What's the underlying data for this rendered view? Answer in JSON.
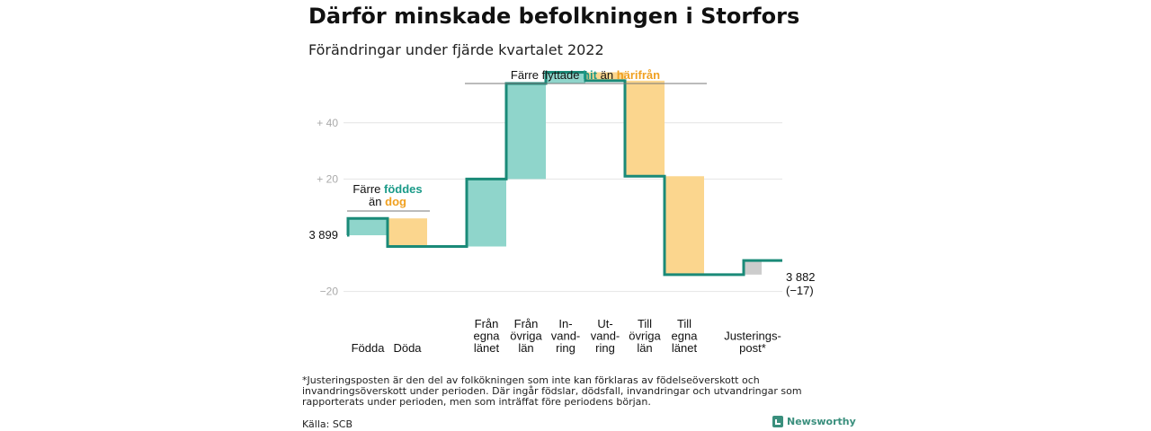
{
  "title": "Därför minskade befolkningen i Storfors",
  "subtitle": "Förändringar under fjärde kvartalet 2022",
  "footnote": "*Justeringsposten är den del av folkökningen som inte kan förklaras av födelseöverskott och invandringsöverskott under perioden. Där ingår födslar, dödsfall, invandringar och utvandringar som rapporterats under perioden, men som inträffat före periodens början.",
  "source": "Källa: SCB",
  "brand": "Newsworthy",
  "colors": {
    "line": "#1a8a78",
    "increase": "#8fd5cb",
    "decrease": "#fbd68e",
    "adjustment": "#cccccc",
    "grid": "#e4e4e4",
    "accent_text": "#1a9a88",
    "orange_text": "#f0a020"
  },
  "chart_data": {
    "type": "waterfall",
    "start_value": 3899,
    "start_label": "3 899",
    "end_label": "3 882",
    "end_change_label": "(−17)",
    "categories": [
      "Födda",
      "Döda",
      "Från egna länet",
      "Från övriga län",
      "In-vand-ring",
      "Ut-vand-ring",
      "Till övriga län",
      "Till egna länet",
      "Justerings-post*"
    ],
    "category_label_lines": [
      [
        "Födda"
      ],
      [
        "Döda"
      ],
      [
        "Från",
        "egna",
        "länet"
      ],
      [
        "Från",
        "övriga",
        "län"
      ],
      [
        "In-",
        "vand-",
        "ring"
      ],
      [
        "Ut-",
        "vand-",
        "ring"
      ],
      [
        "Till",
        "övriga",
        "län"
      ],
      [
        "Till",
        "egna",
        "länet"
      ],
      [
        "Justerings-",
        "post*"
      ]
    ],
    "values": [
      6,
      -10,
      24,
      34,
      4,
      -3,
      -34,
      -35,
      5
    ],
    "y_ticks": [
      "+ 40",
      "+ 20",
      "−20"
    ],
    "y_tick_values": [
      40,
      20,
      -20
    ],
    "ylim": [
      -22,
      55
    ],
    "grid": true,
    "annotations": [
      {
        "parts": [
          "Färre ",
          "föddes"
        ],
        "line2": [
          "än ",
          "dog"
        ]
      },
      {
        "parts": [
          "Färre flyttade ",
          "hit",
          " än ",
          "härifrån"
        ]
      }
    ]
  }
}
